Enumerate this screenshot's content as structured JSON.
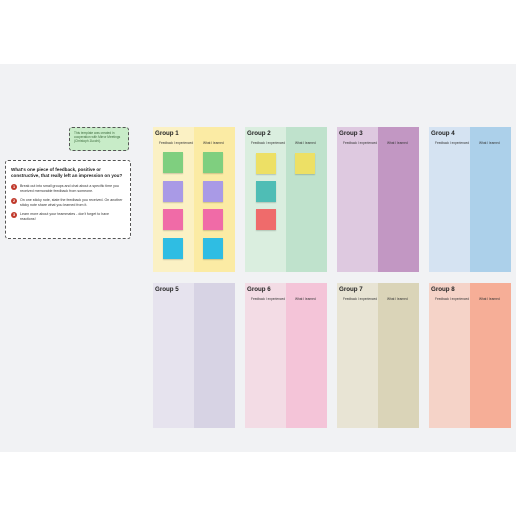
{
  "template_note": "This template was created in cooperation with Mirror Meetings (Christoph Zucchi).",
  "instructions": {
    "question": "What's one piece of feedback, positive or constructive, that really left an impression on you?",
    "steps": [
      {
        "num": "1",
        "text": "Break out into small groups and chat about a specific time you received memorable feedback from someone."
      },
      {
        "num": "2",
        "text": "On one sticky note, state the feedback you received. On another sticky note share what you learned from it."
      },
      {
        "num": "3",
        "text": "Learn more about your teammates - don't forget to have reactions!"
      }
    ]
  },
  "groups": [
    {
      "title": "Group 1",
      "left_color": "#fbf1c4",
      "right_color": "#fbeba4",
      "left_label": "Feedback I experienced",
      "right_label": "What I learned"
    },
    {
      "title": "Group 2",
      "left_color": "#daeedf",
      "right_color": "#bfe2cc",
      "left_label": "Feedback I experienced",
      "right_label": "What I learned"
    },
    {
      "title": "Group 3",
      "left_color": "#dec9e0",
      "right_color": "#c297c3",
      "left_label": "Feedback I experienced",
      "right_label": "What I learned"
    },
    {
      "title": "Group 4",
      "left_color": "#d5e3f2",
      "right_color": "#acd0ea",
      "left_label": "Feedback I experienced",
      "right_label": "What I learned"
    },
    {
      "title": "Group 5",
      "left_color": "#e6e3ee",
      "right_color": "#d7d3e4",
      "left_label": "",
      "right_label": ""
    },
    {
      "title": "Group 6",
      "left_color": "#f3dce5",
      "right_color": "#f4c4d8",
      "left_label": "Feedback I experienced",
      "right_label": "What I learned"
    },
    {
      "title": "Group 7",
      "left_color": "#e8e4d4",
      "right_color": "#dad4b8",
      "left_label": "Feedback I experienced",
      "right_label": "What I learned"
    },
    {
      "title": "Group 8",
      "left_color": "#f5d3c8",
      "right_color": "#f6ae97",
      "left_label": "Feedback I experienced",
      "right_label": "What I learned"
    }
  ],
  "sticky_colors": {
    "green": "#7fcf7f",
    "lavender": "#a99ae6",
    "pink": "#f06ba7",
    "cyan": "#2fbde3",
    "yellow": "#ede065",
    "teal": "#4fbdb5",
    "red": "#ef6b6b"
  }
}
